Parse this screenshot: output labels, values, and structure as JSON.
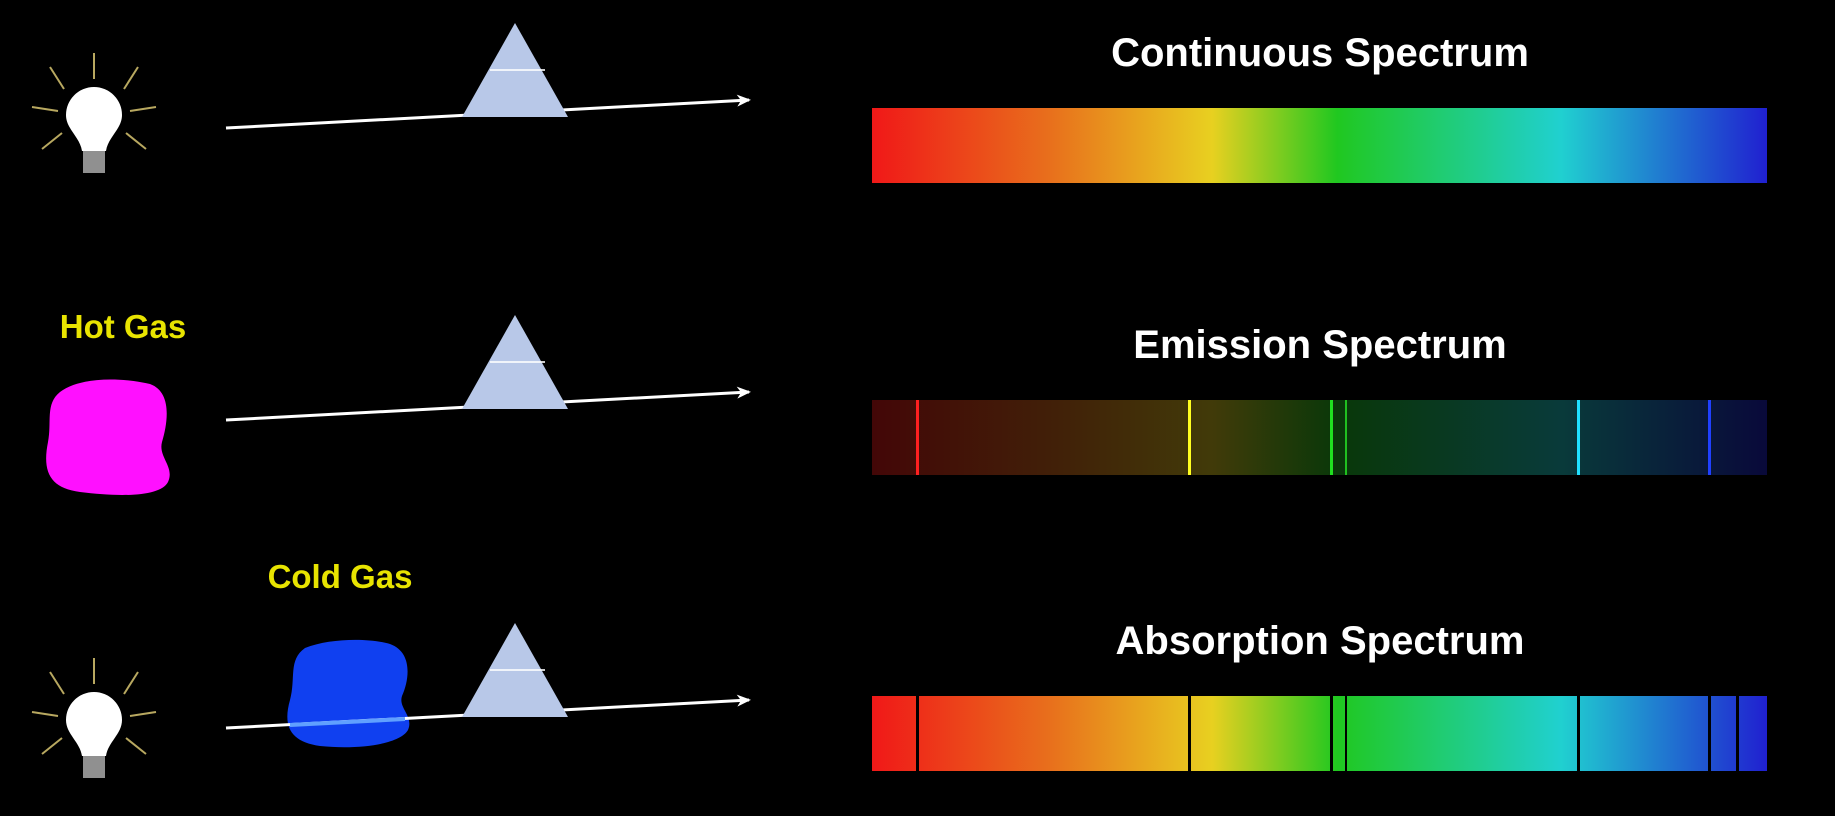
{
  "rows": [
    {
      "title": "Continuous Spectrum"
    },
    {
      "label": "Hot Gas",
      "title": "Emission Spectrum"
    },
    {
      "label": "Cold Gas",
      "title": "Absorption Spectrum"
    }
  ]
}
